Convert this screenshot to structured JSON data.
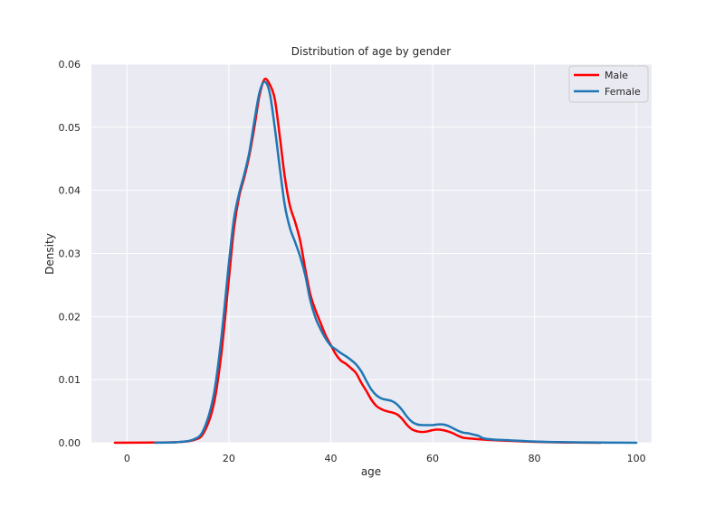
{
  "chart_data": {
    "type": "line",
    "title": "Distribution of age by gender",
    "xlabel": "age",
    "ylabel": "Density",
    "xlim": [
      -7,
      103
    ],
    "ylim": [
      0,
      0.06
    ],
    "xticks": [
      0,
      20,
      40,
      60,
      80,
      100
    ],
    "yticks": [
      "0.00",
      "0.01",
      "0.02",
      "0.03",
      "0.04",
      "0.05",
      "0.06"
    ],
    "grid": true,
    "legend_position": "top-right",
    "background_color": "#eaeaf2",
    "series": [
      {
        "name": "Male",
        "color": "#ff0000",
        "points": [
          [
            -2.4,
            0
          ],
          [
            5,
            3e-05
          ],
          [
            10,
            0.0001
          ],
          [
            13,
            0.0004
          ],
          [
            15,
            0.0015
          ],
          [
            17,
            0.006
          ],
          [
            18.5,
            0.014
          ],
          [
            20,
            0.026
          ],
          [
            21,
            0.034
          ],
          [
            22,
            0.039
          ],
          [
            23,
            0.042
          ],
          [
            24,
            0.0455
          ],
          [
            25,
            0.05
          ],
          [
            26,
            0.055
          ],
          [
            27,
            0.0576
          ],
          [
            28,
            0.0568
          ],
          [
            29,
            0.0545
          ],
          [
            30,
            0.0485
          ],
          [
            31,
            0.042
          ],
          [
            32,
            0.0375
          ],
          [
            33,
            0.035
          ],
          [
            34,
            0.032
          ],
          [
            35,
            0.0275
          ],
          [
            36,
            0.0235
          ],
          [
            37,
            0.021
          ],
          [
            38,
            0.019
          ],
          [
            39,
            0.017
          ],
          [
            40,
            0.0155
          ],
          [
            41,
            0.014
          ],
          [
            42,
            0.013
          ],
          [
            43,
            0.0125
          ],
          [
            44,
            0.0118
          ],
          [
            45,
            0.011
          ],
          [
            46,
            0.0095
          ],
          [
            47,
            0.0082
          ],
          [
            48,
            0.0068
          ],
          [
            49,
            0.0058
          ],
          [
            50,
            0.0053
          ],
          [
            51,
            0.005
          ],
          [
            52,
            0.0048
          ],
          [
            53,
            0.0045
          ],
          [
            54,
            0.0038
          ],
          [
            55,
            0.0028
          ],
          [
            56,
            0.0021
          ],
          [
            57,
            0.0018
          ],
          [
            58,
            0.0017
          ],
          [
            59,
            0.0018
          ],
          [
            60,
            0.002
          ],
          [
            61,
            0.0021
          ],
          [
            62,
            0.002
          ],
          [
            63,
            0.0018
          ],
          [
            64,
            0.0015
          ],
          [
            65,
            0.0011
          ],
          [
            66,
            0.0008
          ],
          [
            67,
            0.0007
          ],
          [
            70,
            0.0005
          ],
          [
            75,
            0.0003
          ],
          [
            80,
            0.00015
          ],
          [
            85,
            6e-05
          ],
          [
            90,
            2e-05
          ],
          [
            93,
            0
          ]
        ]
      },
      {
        "name": "Female",
        "color": "#1f77b4",
        "points": [
          [
            5.5,
            0
          ],
          [
            10,
            0.0001
          ],
          [
            13,
            0.0005
          ],
          [
            15,
            0.002
          ],
          [
            17,
            0.0075
          ],
          [
            18.5,
            0.0165
          ],
          [
            20,
            0.0285
          ],
          [
            21,
            0.0355
          ],
          [
            22,
            0.0395
          ],
          [
            23,
            0.0425
          ],
          [
            24,
            0.046
          ],
          [
            25,
            0.051
          ],
          [
            26,
            0.0555
          ],
          [
            27,
            0.0572
          ],
          [
            28,
            0.0555
          ],
          [
            29,
            0.05
          ],
          [
            30,
            0.0435
          ],
          [
            31,
            0.0375
          ],
          [
            32,
            0.034
          ],
          [
            33,
            0.0318
          ],
          [
            34,
            0.0295
          ],
          [
            35,
            0.0265
          ],
          [
            36,
            0.0225
          ],
          [
            37,
            0.0198
          ],
          [
            38,
            0.018
          ],
          [
            39,
            0.0165
          ],
          [
            40,
            0.0154
          ],
          [
            41,
            0.0148
          ],
          [
            42,
            0.0142
          ],
          [
            43,
            0.0137
          ],
          [
            44,
            0.0131
          ],
          [
            45,
            0.0124
          ],
          [
            46,
            0.0113
          ],
          [
            47,
            0.0098
          ],
          [
            48,
            0.0084
          ],
          [
            49,
            0.0075
          ],
          [
            50,
            0.007
          ],
          [
            51,
            0.0068
          ],
          [
            52,
            0.0066
          ],
          [
            53,
            0.0061
          ],
          [
            54,
            0.0052
          ],
          [
            55,
            0.0041
          ],
          [
            56,
            0.0033
          ],
          [
            57,
            0.0029
          ],
          [
            58,
            0.0028
          ],
          [
            59,
            0.0028
          ],
          [
            60,
            0.0028
          ],
          [
            61,
            0.0029
          ],
          [
            62,
            0.0029
          ],
          [
            63,
            0.0027
          ],
          [
            64,
            0.0023
          ],
          [
            65,
            0.0019
          ],
          [
            66,
            0.0016
          ],
          [
            67,
            0.0015
          ],
          [
            68,
            0.0013
          ],
          [
            69,
            0.0011
          ],
          [
            70,
            0.0007
          ],
          [
            72,
            0.0005
          ],
          [
            75,
            0.0004
          ],
          [
            80,
            0.0002
          ],
          [
            85,
            0.0001
          ],
          [
            90,
            5e-05
          ],
          [
            95,
            2e-05
          ],
          [
            100,
            0
          ]
        ]
      }
    ]
  }
}
